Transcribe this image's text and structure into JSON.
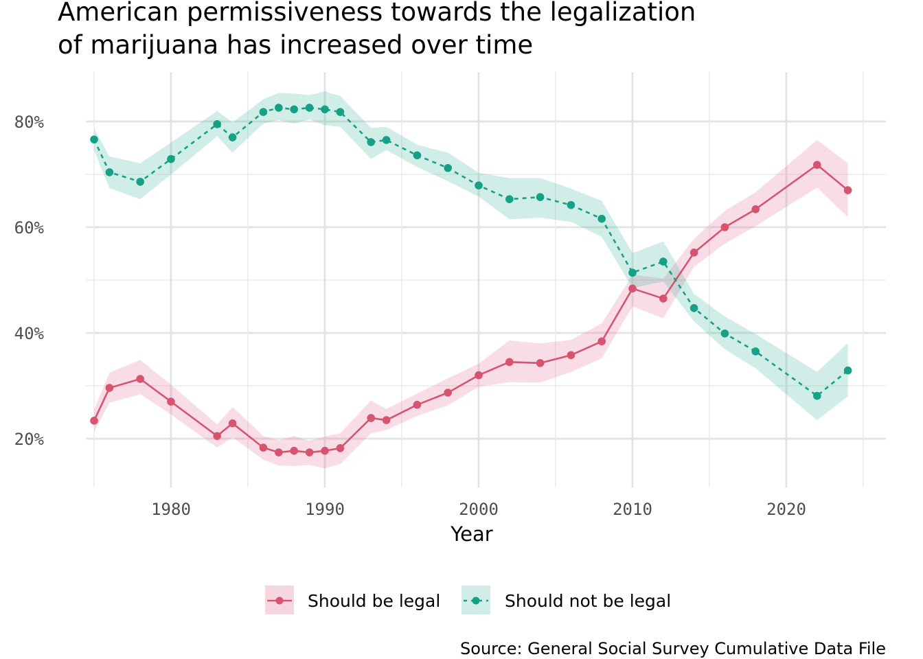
{
  "title_lines": [
    "American permissiveness towards the legalization",
    "of marijuana has increased over time"
  ],
  "caption": "Source: General Social Survey Cumulative Data File",
  "chart_data": {
    "type": "line",
    "title": "American permissiveness towards the legalization of marijuana has increased over time",
    "xlabel": "Year",
    "ylabel": "",
    "xlim": [
      1973.5,
      2026.5
    ],
    "ylim": [
      11,
      88
    ],
    "x_ticks": [
      1980,
      1990,
      2000,
      2010,
      2020
    ],
    "x_tick_labels": [
      "1980",
      "1990",
      "2000",
      "2010",
      "2020"
    ],
    "x_minor_ticks": [
      1975,
      1985,
      1995,
      2005,
      2015,
      2025
    ],
    "y_ticks": [
      20,
      40,
      60,
      80
    ],
    "y_tick_labels": [
      "20%",
      "40%",
      "60%",
      "80%"
    ],
    "y_minor_ticks": [
      30,
      50,
      70
    ],
    "grid": true,
    "legend_position": "bottom",
    "x": [
      1975,
      1976,
      1978,
      1980,
      1983,
      1984,
      1986,
      1987,
      1988,
      1989,
      1990,
      1991,
      1993,
      1994,
      1996,
      1998,
      2000,
      2002,
      2004,
      2006,
      2008,
      2010,
      2012,
      2014,
      2016,
      2018,
      2022,
      2024
    ],
    "series": [
      {
        "name": "Should be legal",
        "color": "#d6546f",
        "ribbon_color": "#f3c8d3",
        "line_style": "solid",
        "values": [
          23.4,
          29.6,
          31.3,
          27.0,
          20.5,
          22.9,
          18.3,
          17.4,
          17.7,
          17.4,
          17.7,
          18.2,
          23.9,
          23.5,
          26.4,
          28.7,
          32.0,
          34.5,
          34.3,
          35.8,
          38.4,
          48.4,
          46.5,
          55.2,
          60.0,
          63.4,
          71.8,
          67.0
        ],
        "lower": [
          21.3,
          26.8,
          28.4,
          24.6,
          18.3,
          20.3,
          16.0,
          14.9,
          14.8,
          15.0,
          14.4,
          15.2,
          21.0,
          21.6,
          24.3,
          26.3,
          29.8,
          30.7,
          30.6,
          32.6,
          35.2,
          45.0,
          42.8,
          52.5,
          56.9,
          60.2,
          67.5,
          61.9
        ],
        "upper": [
          25.5,
          32.5,
          34.9,
          30.2,
          22.7,
          26.0,
          20.5,
          19.7,
          20.5,
          19.6,
          20.4,
          21.0,
          27.2,
          25.6,
          28.5,
          31.4,
          34.2,
          38.6,
          38.0,
          38.7,
          41.8,
          51.0,
          50.3,
          57.8,
          63.1,
          66.6,
          76.5,
          72.1
        ]
      },
      {
        "name": "Should not be legal",
        "color": "#16a085",
        "ribbon_color": "#c5e8e1",
        "line_style": "dashed",
        "values": [
          76.6,
          70.4,
          68.6,
          72.9,
          79.5,
          77.0,
          81.8,
          82.6,
          82.3,
          82.6,
          82.3,
          81.8,
          76.1,
          76.5,
          73.6,
          71.2,
          67.9,
          65.3,
          65.7,
          64.2,
          61.6,
          51.4,
          53.5,
          44.7,
          39.9,
          36.5,
          28.1,
          32.9
        ],
        "lower": [
          74.5,
          67.4,
          65.3,
          70.0,
          77.2,
          74.1,
          79.6,
          80.3,
          79.6,
          80.4,
          79.3,
          79.0,
          72.9,
          74.6,
          71.4,
          68.7,
          65.8,
          61.5,
          61.8,
          61.0,
          58.2,
          48.5,
          49.7,
          42.2,
          36.9,
          33.3,
          23.5,
          28.0
        ],
        "upper": [
          78.7,
          73.4,
          72.1,
          76.0,
          82.0,
          79.8,
          84.2,
          85.4,
          85.3,
          85.0,
          85.7,
          84.8,
          78.8,
          79.0,
          75.6,
          74.1,
          70.3,
          69.3,
          69.3,
          67.3,
          65.0,
          55.1,
          57.3,
          47.4,
          43.1,
          39.8,
          32.6,
          38.1
        ]
      }
    ]
  }
}
